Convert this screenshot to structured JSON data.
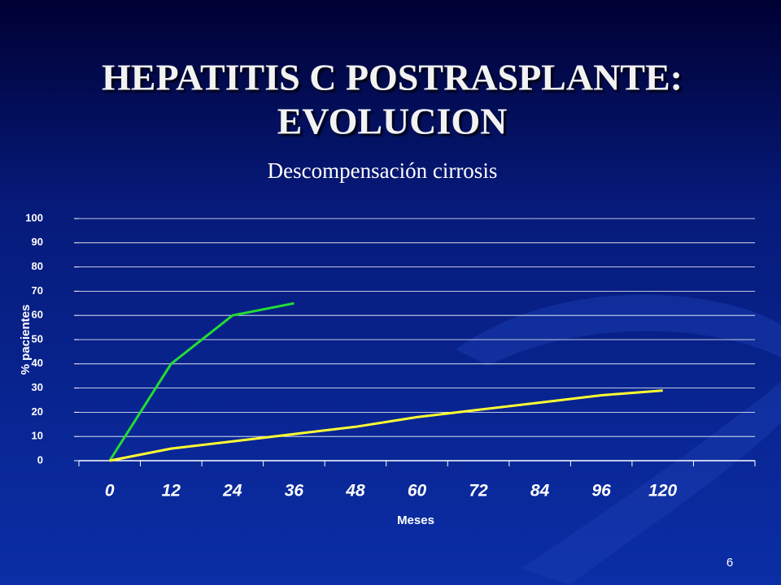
{
  "slide": {
    "title_lines": [
      "HEPATITIS C POSTRASPLANTE:",
      "EVOLUCION"
    ],
    "number": "6"
  },
  "chart_data": {
    "type": "line",
    "title": "Descompensación cirrosis",
    "x_label": "Meses",
    "y_label": "% pacientes",
    "categories": [
      "0",
      "12",
      "24",
      "36",
      "48",
      "60",
      "72",
      "84",
      "96",
      "120",
      null
    ],
    "series": [
      {
        "color": "#22dd33",
        "values": [
          0,
          40,
          60,
          65,
          null,
          null,
          null,
          null,
          null,
          null,
          null
        ]
      },
      {
        "color": "#ffff33",
        "values": [
          0,
          5,
          8,
          11,
          14,
          18,
          21,
          24,
          27,
          29,
          null
        ]
      }
    ],
    "ylim": [
      0,
      100
    ],
    "yticks": [
      0,
      10,
      20,
      30,
      40,
      50,
      60,
      70,
      80,
      90,
      100
    ],
    "grid": true
  }
}
